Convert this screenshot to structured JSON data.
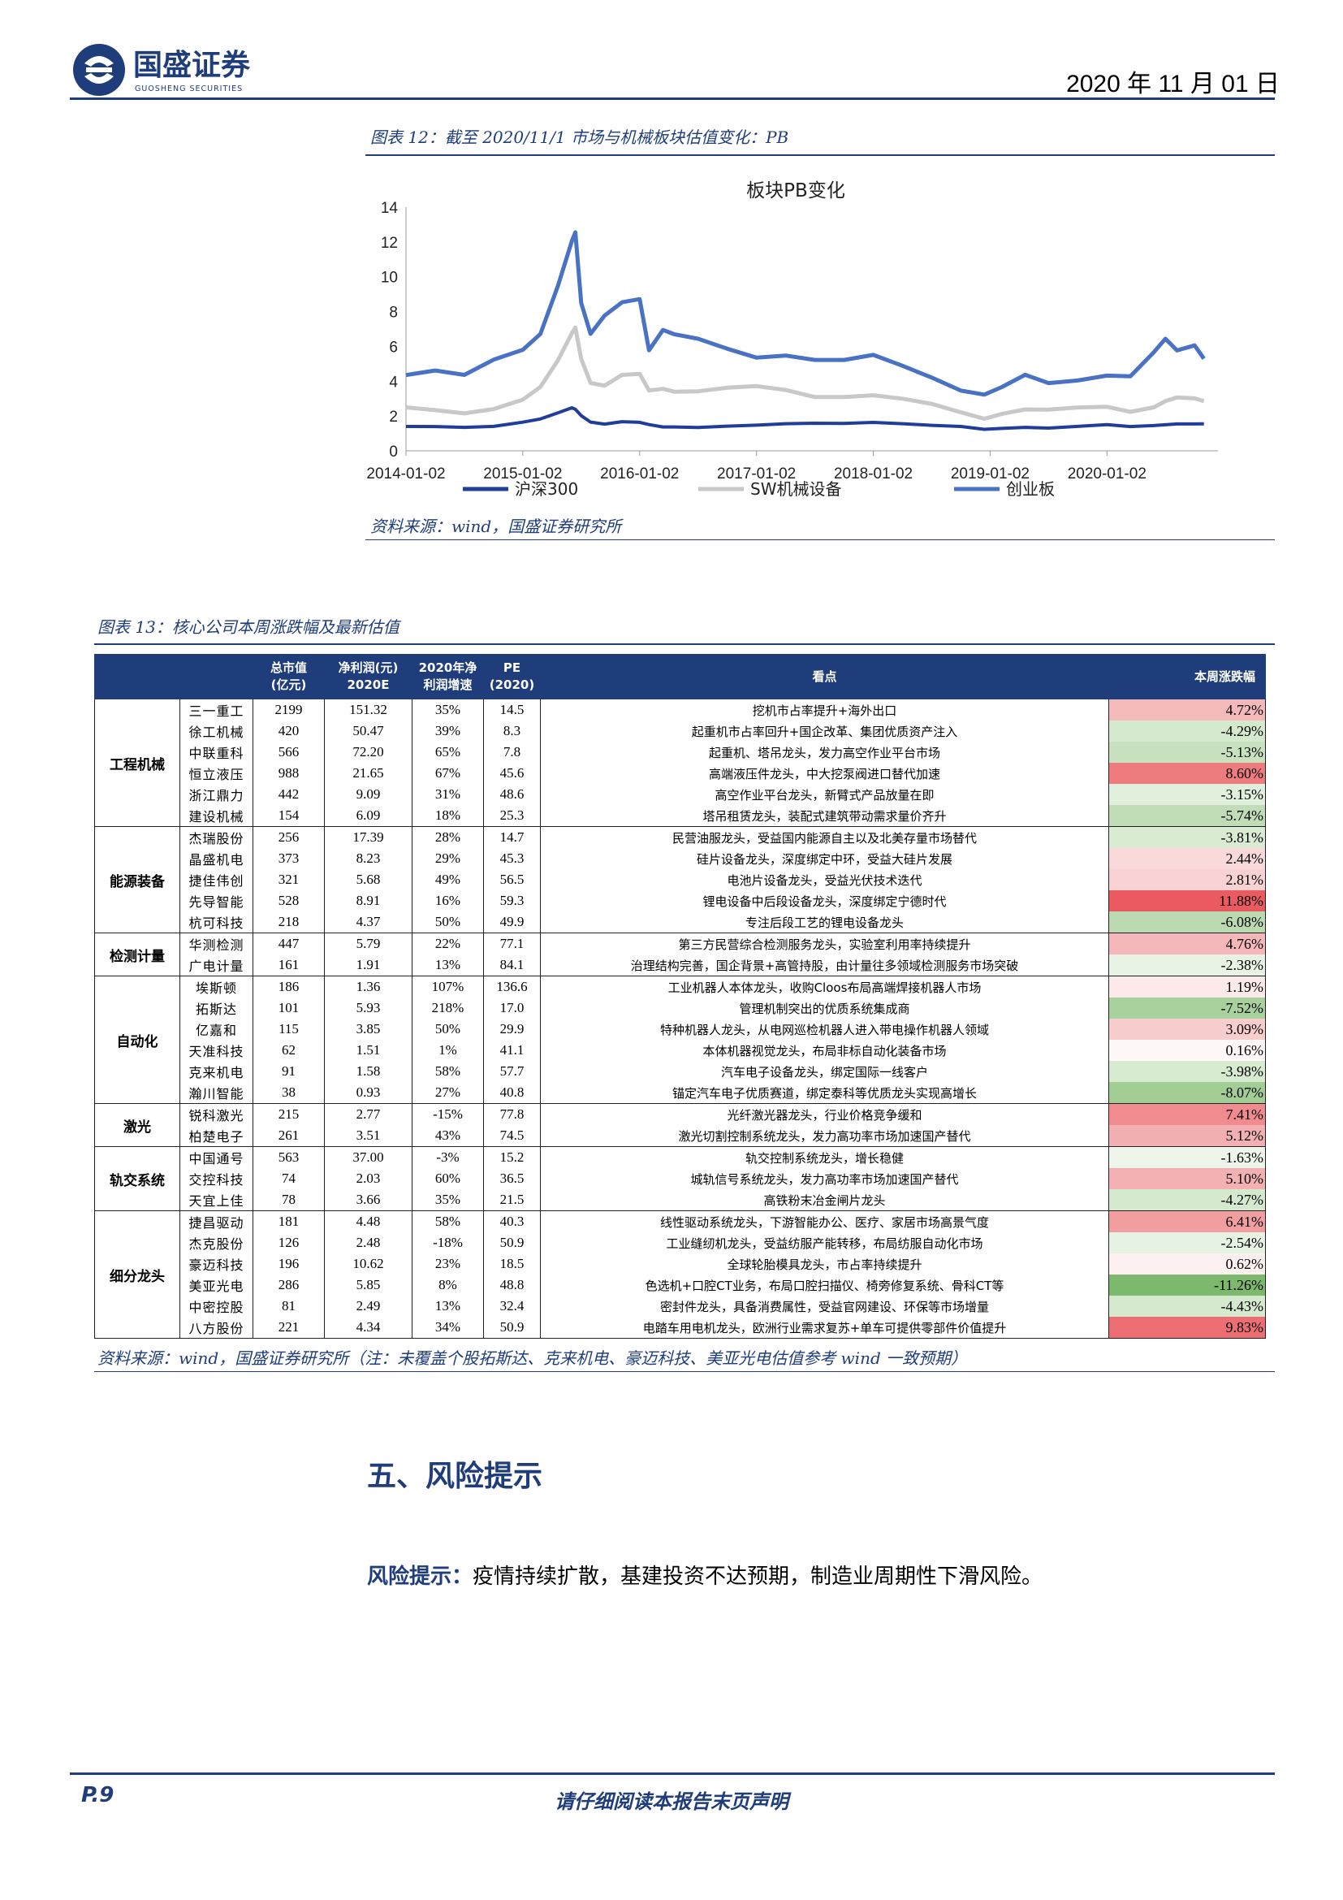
{
  "header": {
    "brand_name": "国盛证券",
    "brand_sub": "GUOSHENG SECURITIES",
    "date": "2020 年 11 月 01 日",
    "brand_color": "#1f3d7a"
  },
  "figure12": {
    "caption": "图表 12：截至 2020/11/1 市场与机械板块估值变化：PB",
    "source": "资料来源：wind，国盛证券研究所"
  },
  "chart_data": {
    "type": "line",
    "title": "板块PB变化",
    "x_ticks": [
      "2014-01-02",
      "2015-01-02",
      "2016-01-02",
      "2017-01-02",
      "2018-01-02",
      "2019-01-02",
      "2020-01-02"
    ],
    "ylim": [
      0,
      14
    ],
    "y_ticks": [
      0,
      2,
      4,
      6,
      8,
      10,
      12,
      14
    ],
    "legend_position": "bottom",
    "x_years": [
      2014.0,
      2014.25,
      2014.5,
      2014.75,
      2015.0,
      2015.15,
      2015.3,
      2015.42,
      2015.45,
      2015.5,
      2015.58,
      2015.7,
      2015.85,
      2016.0,
      2016.08,
      2016.2,
      2016.3,
      2016.5,
      2016.75,
      2017.0,
      2017.25,
      2017.5,
      2017.75,
      2018.0,
      2018.25,
      2018.5,
      2018.75,
      2018.95,
      2019.1,
      2019.3,
      2019.5,
      2019.75,
      2020.0,
      2020.2,
      2020.4,
      2020.5,
      2020.6,
      2020.75,
      2020.83
    ],
    "series": [
      {
        "name": "沪深300",
        "color": "#1f3d99",
        "values": [
          1.4,
          1.35,
          1.3,
          1.4,
          1.7,
          1.9,
          2.2,
          2.4,
          2.3,
          2.0,
          1.7,
          1.6,
          1.7,
          1.6,
          1.45,
          1.35,
          1.4,
          1.4,
          1.45,
          1.45,
          1.5,
          1.55,
          1.6,
          1.7,
          1.6,
          1.45,
          1.35,
          1.2,
          1.3,
          1.4,
          1.35,
          1.4,
          1.45,
          1.35,
          1.45,
          1.55,
          1.6,
          1.55,
          1.5
        ]
      },
      {
        "name": "SW机械设备",
        "color": "#c8c8c8",
        "values": [
          2.4,
          2.3,
          2.2,
          2.5,
          3.0,
          3.6,
          5.0,
          6.6,
          7.2,
          5.5,
          4.0,
          3.7,
          4.2,
          4.3,
          3.5,
          3.7,
          3.5,
          3.4,
          3.5,
          3.6,
          3.5,
          3.2,
          3.2,
          3.2,
          2.9,
          2.6,
          2.2,
          1.9,
          2.2,
          2.4,
          2.3,
          2.4,
          2.5,
          2.3,
          2.6,
          2.9,
          3.0,
          2.9,
          2.8
        ]
      },
      {
        "name": "创业板",
        "color": "#4a72c4",
        "values": [
          4.4,
          4.8,
          4.5,
          5.2,
          5.6,
          6.5,
          9.5,
          12.5,
          13.0,
          8.5,
          6.5,
          7.5,
          8.5,
          9.0,
          6.0,
          7.0,
          6.5,
          6.2,
          5.8,
          5.5,
          5.7,
          5.3,
          5.1,
          5.3,
          4.8,
          4.3,
          3.6,
          3.3,
          3.6,
          4.2,
          3.8,
          4.1,
          4.5,
          4.4,
          5.6,
          6.2,
          5.6,
          6.1,
          5.5
        ]
      }
    ]
  },
  "figure13": {
    "caption": "图表 13：核心公司本周涨跌幅及最新估值",
    "source": "资料来源：wind，国盛证券研究所（注：未覆盖个股拓斯达、克来机电、豪迈科技、美亚光电估值参考 wind 一致预期）",
    "headers": {
      "cap_1": "总市值",
      "cap_2": "(亿元)",
      "profit_1": "净利润(元)",
      "profit_2": "2020E",
      "growth_1": "2020年净",
      "growth_2": "利润增速",
      "pe_1": "PE",
      "pe_2": "(2020)",
      "view": "看点",
      "change": "本周涨跌幅"
    },
    "groups": [
      {
        "name": "工程机械",
        "rows": [
          {
            "name": "三一重工",
            "cap": "2199",
            "profit": "151.32",
            "growth": "35%",
            "pe": "14.5",
            "view": "挖机市占率提升+海外出口",
            "change": "4.72%",
            "bg": "#f4b9bb"
          },
          {
            "name": "徐工机械",
            "cap": "420",
            "profit": "50.47",
            "growth": "39%",
            "pe": "8.3",
            "view": "起重机市占率回升+国企改革、集团优质资产注入",
            "change": "-4.29%",
            "bg": "#d5e9cf"
          },
          {
            "name": "中联重科",
            "cap": "566",
            "profit": "72.20",
            "growth": "65%",
            "pe": "7.8",
            "view": "起重机、塔吊龙头，发力高空作业平台市场",
            "change": "-5.13%",
            "bg": "#c8e2c0"
          },
          {
            "name": "恒立液压",
            "cap": "988",
            "profit": "21.65",
            "growth": "67%",
            "pe": "45.6",
            "view": "高端液压件龙头，中大挖泵阀进口替代加速",
            "change": "8.60%",
            "bg": "#ee7b7e"
          },
          {
            "name": "浙江鼎力",
            "cap": "442",
            "profit": "9.09",
            "growth": "31%",
            "pe": "48.6",
            "view": "高空作业平台龙头，新臂式产品放量在即",
            "change": "-3.15%",
            "bg": "#e1f0dc"
          },
          {
            "name": "建设机械",
            "cap": "154",
            "profit": "6.09",
            "growth": "18%",
            "pe": "25.3",
            "view": "塔吊租赁龙头，装配式建筑带动需求量价齐升",
            "change": "-5.74%",
            "bg": "#c0ddb7"
          }
        ]
      },
      {
        "name": "能源装备",
        "rows": [
          {
            "name": "杰瑞股份",
            "cap": "256",
            "profit": "17.39",
            "growth": "28%",
            "pe": "14.7",
            "view": "民营油服龙头，受益国内能源自主以及北美存量市场替代",
            "change": "-3.81%",
            "bg": "#d9ecd3"
          },
          {
            "name": "晶盛机电",
            "cap": "373",
            "profit": "8.23",
            "growth": "29%",
            "pe": "45.3",
            "view": "硅片设备龙头，深度绑定中环，受益大硅片发展",
            "change": "2.44%",
            "bg": "#fad9da"
          },
          {
            "name": "捷佳伟创",
            "cap": "321",
            "profit": "5.68",
            "growth": "49%",
            "pe": "56.5",
            "view": "电池片设备龙头，受益光伏技术迭代",
            "change": "2.81%",
            "bg": "#f9d2d3"
          },
          {
            "name": "先导智能",
            "cap": "528",
            "profit": "8.91",
            "growth": "16%",
            "pe": "59.3",
            "view": "锂电设备中后段设备龙头，深度绑定宁德时代",
            "change": "11.88%",
            "bg": "#e95b60"
          },
          {
            "name": "杭可科技",
            "cap": "218",
            "profit": "4.37",
            "growth": "50%",
            "pe": "49.9",
            "view": "专注后段工艺的锂电设备龙头",
            "change": "-6.08%",
            "bg": "#bbdab1"
          }
        ]
      },
      {
        "name": "检测计量",
        "rows": [
          {
            "name": "华测检测",
            "cap": "447",
            "profit": "5.79",
            "growth": "22%",
            "pe": "77.1",
            "view": "第三方民营综合检测服务龙头，实验室利用率持续提升",
            "change": "4.76%",
            "bg": "#f4b8ba"
          },
          {
            "name": "广电计量",
            "cap": "161",
            "profit": "1.91",
            "growth": "13%",
            "pe": "84.1",
            "view": "治理结构完善，国企背景+高管持股，由计量往多领域检测服务市场突破",
            "change": "-2.38%",
            "bg": "#e8f3e4"
          }
        ]
      },
      {
        "name": "自动化",
        "rows": [
          {
            "name": "埃斯顿",
            "cap": "186",
            "profit": "1.36",
            "growth": "107%",
            "pe": "136.6",
            "view": "工业机器人本体龙头，收购Cloos布局高端焊接机器人市场",
            "change": "1.19%",
            "bg": "#fce9e9"
          },
          {
            "name": "拓斯达",
            "cap": "101",
            "profit": "5.93",
            "growth": "218%",
            "pe": "17.0",
            "view": "管理机制突出的优质系统集成商",
            "change": "-7.52%",
            "bg": "#a9d19d"
          },
          {
            "name": "亿嘉和",
            "cap": "115",
            "profit": "3.85",
            "growth": "50%",
            "pe": "29.9",
            "view": "特种机器人龙头，从电网巡检机器人进入带电操作机器人领域",
            "change": "3.09%",
            "bg": "#f8cdce"
          },
          {
            "name": "天准科技",
            "cap": "62",
            "profit": "1.51",
            "growth": "1%",
            "pe": "41.1",
            "view": "本体机器视觉龙头，布局非标自动化装备市场",
            "change": "0.16%",
            "bg": "#fef7f7"
          },
          {
            "name": "克来机电",
            "cap": "91",
            "profit": "1.58",
            "growth": "58%",
            "pe": "57.7",
            "view": "汽车电子设备龙头，绑定国际一线客户",
            "change": "-3.98%",
            "bg": "#d7ebd1"
          },
          {
            "name": "瀚川智能",
            "cap": "38",
            "profit": "0.93",
            "growth": "27%",
            "pe": "40.8",
            "view": "锚定汽车电子优质赛道，绑定泰科等优质龙头实现高增长",
            "change": "-8.07%",
            "bg": "#a2cd95"
          }
        ]
      },
      {
        "name": "激光",
        "rows": [
          {
            "name": "锐科激光",
            "cap": "215",
            "profit": "2.77",
            "growth": "-15%",
            "pe": "77.8",
            "view": "光纤激光器龙头，行业价格竞争缓和",
            "change": "7.41%",
            "bg": "#f08c8f"
          },
          {
            "name": "柏楚电子",
            "cap": "261",
            "profit": "3.51",
            "growth": "43%",
            "pe": "74.5",
            "view": "激光切割控制系统龙头，发力高功率市场加速国产替代",
            "change": "5.12%",
            "bg": "#f3b0b2"
          }
        ]
      },
      {
        "name": "轨交系统",
        "rows": [
          {
            "name": "中国通号",
            "cap": "563",
            "profit": "37.00",
            "growth": "-3%",
            "pe": "15.2",
            "view": "轨交控制系统龙头，增长稳健",
            "change": "-1.63%",
            "bg": "#eef6ec"
          },
          {
            "name": "交控科技",
            "cap": "74",
            "profit": "2.03",
            "growth": "60%",
            "pe": "36.5",
            "view": "城轨信号系统龙头，发力高功率市场加速国产替代",
            "change": "5.10%",
            "bg": "#f3b1b3"
          },
          {
            "name": "天宜上佳",
            "cap": "78",
            "profit": "3.66",
            "growth": "35%",
            "pe": "21.5",
            "view": "高铁粉末冶金闸片龙头",
            "change": "-4.27%",
            "bg": "#d5e9cf"
          }
        ]
      },
      {
        "name": "细分龙头",
        "rows": [
          {
            "name": "捷昌驱动",
            "cap": "181",
            "profit": "4.48",
            "growth": "58%",
            "pe": "40.3",
            "view": "线性驱动系统龙头，下游智能办公、医疗、家居市场高景气度",
            "change": "6.41%",
            "bg": "#f19ea1"
          },
          {
            "name": "杰克股份",
            "cap": "126",
            "profit": "2.48",
            "growth": "-18%",
            "pe": "50.9",
            "view": "工业缝纫机龙头，受益纺服产能转移，布局纺服自动化市场",
            "change": "-2.54%",
            "bg": "#e6f2e2"
          },
          {
            "name": "豪迈科技",
            "cap": "196",
            "profit": "10.62",
            "growth": "23%",
            "pe": "18.5",
            "view": "全球轮胎模具龙头，市占率持续提升",
            "change": "0.62%",
            "bg": "#fdf0f0"
          },
          {
            "name": "美亚光电",
            "cap": "286",
            "profit": "5.85",
            "growth": "8%",
            "pe": "48.8",
            "view": "色选机+口腔CT业务，布局口腔扫描仪、椅旁修复系统、骨科CT等",
            "change": "-11.26%",
            "bg": "#7cb96c"
          },
          {
            "name": "中密控股",
            "cap": "81",
            "profit": "2.49",
            "growth": "13%",
            "pe": "32.4",
            "view": "密封件龙头，具备消费属性，受益官网建设、环保等市场增量",
            "change": "-4.43%",
            "bg": "#d4e9ce"
          },
          {
            "name": "八方股份",
            "cap": "221",
            "profit": "4.34",
            "growth": "34%",
            "pe": "50.9",
            "view": "电踏车用电机龙头，欧洲行业需求复苏+单车可提供零部件价值提升",
            "change": "9.83%",
            "bg": "#ec6e72"
          }
        ]
      }
    ]
  },
  "section5": {
    "title": "五、风险提示",
    "risk_label": "风险提示：",
    "risk_text": "疫情持续扩散，基建投资不达预期，制造业周期性下滑风险。"
  },
  "footer": {
    "page": "P.9",
    "disclaimer": "请仔细阅读本报告末页声明"
  }
}
